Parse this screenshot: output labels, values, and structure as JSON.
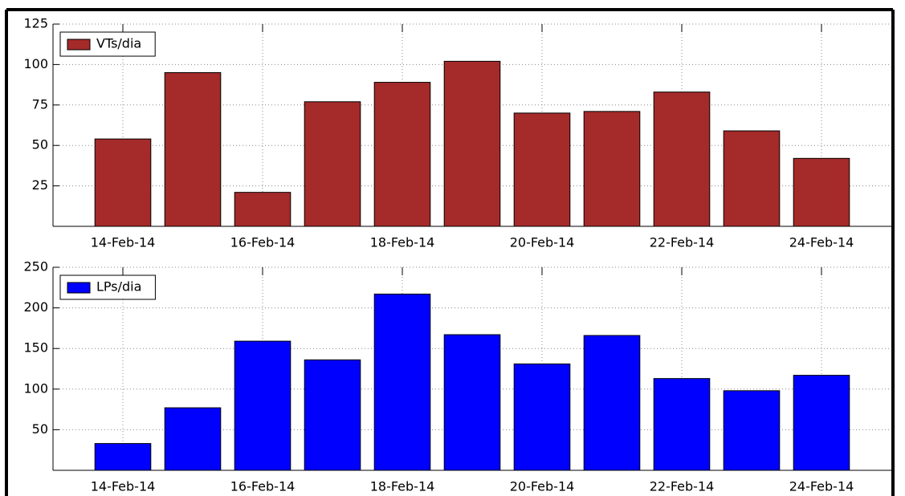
{
  "chart_data": [
    {
      "type": "bar",
      "categories": [
        "14-Feb-14",
        null,
        "16-Feb-14",
        null,
        "18-Feb-14",
        null,
        "20-Feb-14",
        null,
        "22-Feb-14",
        null,
        "24-Feb-14"
      ],
      "series": [
        {
          "name": "VTs/dia",
          "color": "#a52a2a",
          "values": [
            54,
            95,
            21,
            77,
            89,
            102,
            70,
            71,
            83,
            59,
            42
          ]
        }
      ],
      "ylim": [
        0,
        125
      ],
      "yticks": [
        25,
        50,
        75,
        100,
        125
      ],
      "grid": true,
      "legend": "upper left"
    },
    {
      "type": "bar",
      "categories": [
        "14-Feb-14",
        null,
        "16-Feb-14",
        null,
        "18-Feb-14",
        null,
        "20-Feb-14",
        null,
        "22-Feb-14",
        null,
        "24-Feb-14"
      ],
      "series": [
        {
          "name": "LPs/dia",
          "color": "#0000ff",
          "values": [
            33,
            77,
            159,
            136,
            217,
            167,
            131,
            166,
            113,
            98,
            117
          ]
        }
      ],
      "ylim": [
        0,
        250
      ],
      "yticks": [
        50,
        100,
        150,
        200,
        250
      ],
      "grid": true,
      "legend": "upper left"
    }
  ]
}
